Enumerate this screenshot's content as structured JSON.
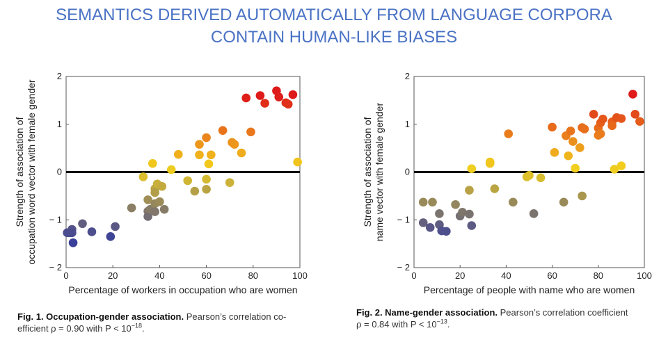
{
  "title": {
    "line1": "SEMANTICS DERIVED AUTOMATICALLY FROM LANGUAGE CORPORA",
    "line2": "CONTAIN HUMAN-LIKE BIASES"
  },
  "colors": {
    "title": "#4a72c4",
    "zero_line": "#000000",
    "low": "#3a3f9a",
    "mid": "#f3d11d",
    "high": "#de1a1a"
  },
  "chart_data": [
    {
      "type": "scatter",
      "title": "",
      "xlabel": "Percentage of workers in occupation who are women",
      "ylabel_line1": "Strength of association of",
      "ylabel_line2": "occupation word vector with female gender",
      "xlim": [
        0,
        100
      ],
      "ylim": [
        -2,
        2
      ],
      "xticks": [
        0,
        20,
        40,
        60,
        80,
        100
      ],
      "yticks": [
        -2,
        -1,
        0,
        1,
        2
      ],
      "ytick_labels": [
        "− 2",
        "− 1",
        "0",
        "1",
        "2"
      ],
      "zero_line": true,
      "points": [
        {
          "x": 0.5,
          "y": -1.27
        },
        {
          "x": 1.5,
          "y": -1.27
        },
        {
          "x": 2.5,
          "y": -1.2
        },
        {
          "x": 2.5,
          "y": -1.27
        },
        {
          "x": 3,
          "y": -1.48
        },
        {
          "x": 7,
          "y": -1.08
        },
        {
          "x": 11,
          "y": -1.25
        },
        {
          "x": 19,
          "y": -1.35
        },
        {
          "x": 21,
          "y": -1.14
        },
        {
          "x": 28,
          "y": -0.75
        },
        {
          "x": 33,
          "y": -0.1
        },
        {
          "x": 35,
          "y": -0.58
        },
        {
          "x": 35,
          "y": -0.82
        },
        {
          "x": 35,
          "y": -0.93
        },
        {
          "x": 36,
          "y": -0.78
        },
        {
          "x": 37,
          "y": 0.18
        },
        {
          "x": 38,
          "y": -0.35
        },
        {
          "x": 38,
          "y": -0.43
        },
        {
          "x": 38,
          "y": -0.66
        },
        {
          "x": 38,
          "y": -0.83
        },
        {
          "x": 39,
          "y": -0.25
        },
        {
          "x": 40,
          "y": -0.62
        },
        {
          "x": 41,
          "y": -0.3
        },
        {
          "x": 42,
          "y": -0.78
        },
        {
          "x": 45,
          "y": 0.05
        },
        {
          "x": 48,
          "y": 0.37
        },
        {
          "x": 52,
          "y": -0.18
        },
        {
          "x": 55,
          "y": -0.4
        },
        {
          "x": 57,
          "y": 0.58
        },
        {
          "x": 57,
          "y": 0.36
        },
        {
          "x": 60,
          "y": 0.72
        },
        {
          "x": 60,
          "y": -0.15
        },
        {
          "x": 60,
          "y": -0.36
        },
        {
          "x": 61,
          "y": 0.17
        },
        {
          "x": 62,
          "y": 0.36
        },
        {
          "x": 67,
          "y": 0.87
        },
        {
          "x": 70,
          "y": -0.22
        },
        {
          "x": 71,
          "y": 0.62
        },
        {
          "x": 72,
          "y": 0.58
        },
        {
          "x": 75,
          "y": 0.4
        },
        {
          "x": 77,
          "y": 1.55
        },
        {
          "x": 79,
          "y": 0.84
        },
        {
          "x": 83,
          "y": 1.6
        },
        {
          "x": 85,
          "y": 1.44
        },
        {
          "x": 90,
          "y": 1.7
        },
        {
          "x": 91,
          "y": 1.57
        },
        {
          "x": 94,
          "y": 1.45
        },
        {
          "x": 95,
          "y": 1.42
        },
        {
          "x": 97,
          "y": 1.62
        },
        {
          "x": 99,
          "y": 0.21
        }
      ]
    },
    {
      "type": "scatter",
      "title": "",
      "xlabel": "Percentage of people with name who are women",
      "ylabel_line1": "Strength of association of",
      "ylabel_line2": "name vector with female gender",
      "xlim": [
        0,
        100
      ],
      "ylim": [
        -2,
        2
      ],
      "xticks": [
        0,
        20,
        40,
        60,
        80,
        100
      ],
      "yticks": [
        -2,
        -1,
        0,
        1,
        2
      ],
      "ytick_labels": [
        "− 2",
        "− 1",
        "0",
        "1",
        "2"
      ],
      "zero_line": true,
      "points": [
        {
          "x": 4,
          "y": -0.63
        },
        {
          "x": 4,
          "y": -1.06
        },
        {
          "x": 7,
          "y": -1.16
        },
        {
          "x": 8,
          "y": -0.63
        },
        {
          "x": 11,
          "y": -1.1
        },
        {
          "x": 11,
          "y": -0.87
        },
        {
          "x": 12,
          "y": -1.23
        },
        {
          "x": 14,
          "y": -1.24
        },
        {
          "x": 18,
          "y": -0.68
        },
        {
          "x": 20,
          "y": -0.92
        },
        {
          "x": 21,
          "y": -0.84
        },
        {
          "x": 24,
          "y": -0.88
        },
        {
          "x": 24,
          "y": -0.38
        },
        {
          "x": 25,
          "y": -1.12
        },
        {
          "x": 25,
          "y": 0.07
        },
        {
          "x": 33,
          "y": 0.21
        },
        {
          "x": 33,
          "y": 0.18
        },
        {
          "x": 35,
          "y": -0.35
        },
        {
          "x": 41,
          "y": 0.8
        },
        {
          "x": 43,
          "y": -0.63
        },
        {
          "x": 49,
          "y": -0.1
        },
        {
          "x": 50,
          "y": -0.07
        },
        {
          "x": 52,
          "y": -0.87
        },
        {
          "x": 55,
          "y": -0.12
        },
        {
          "x": 60,
          "y": 0.94
        },
        {
          "x": 61,
          "y": 0.41
        },
        {
          "x": 65,
          "y": -0.63
        },
        {
          "x": 66,
          "y": 0.76
        },
        {
          "x": 67,
          "y": 0.34
        },
        {
          "x": 68,
          "y": 0.86
        },
        {
          "x": 69,
          "y": 0.64
        },
        {
          "x": 70,
          "y": 0.08
        },
        {
          "x": 72,
          "y": 0.51
        },
        {
          "x": 73,
          "y": 0.93
        },
        {
          "x": 73,
          "y": -0.5
        },
        {
          "x": 74,
          "y": 0.9
        },
        {
          "x": 78,
          "y": 1.21
        },
        {
          "x": 80,
          "y": 0.92
        },
        {
          "x": 80,
          "y": 0.77
        },
        {
          "x": 81,
          "y": 1.03
        },
        {
          "x": 81,
          "y": 0.8
        },
        {
          "x": 82,
          "y": 1.11
        },
        {
          "x": 86,
          "y": 1.05
        },
        {
          "x": 86,
          "y": 0.97
        },
        {
          "x": 87,
          "y": 0.06
        },
        {
          "x": 88,
          "y": 1.14
        },
        {
          "x": 90,
          "y": 1.12
        },
        {
          "x": 90,
          "y": 0.13
        },
        {
          "x": 95,
          "y": 1.63
        },
        {
          "x": 96,
          "y": 1.21
        },
        {
          "x": 98,
          "y": 1.06
        }
      ]
    }
  ],
  "captions": [
    {
      "label": "Fig. 1. Occupation-gender association.",
      "text_line1": "Pearson’s correlation co-",
      "text_line2": "efficient ρ = 0.90 with P < 10",
      "exponent": "−18",
      "end": "."
    },
    {
      "label": "Fig. 2. Name-gender association.",
      "text_line1": "Pearson’s correlation coefficient",
      "text_line2": "ρ = 0.84 with P < 10",
      "exponent": "−13",
      "end": "."
    }
  ]
}
